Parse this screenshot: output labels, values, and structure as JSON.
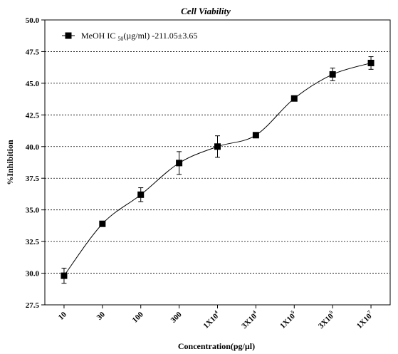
{
  "chart_data": {
    "type": "line",
    "title": "Cell Viability",
    "xlabel": "Concentration(pg/µl)",
    "ylabel": "%Inhibition",
    "ylim": [
      27.5,
      50.0
    ],
    "yticks": [
      "27.5",
      "30.0",
      "32.5",
      "35.0",
      "37.5",
      "40.0",
      "42.5",
      "45.0",
      "47.5",
      "50.0"
    ],
    "grid": true,
    "legend_position": "top-left",
    "categories": [
      {
        "base": "10",
        "sup": ""
      },
      {
        "base": "30",
        "sup": ""
      },
      {
        "base": "100",
        "sup": ""
      },
      {
        "base": "300",
        "sup": ""
      },
      {
        "base": "1X10",
        "sup": "4"
      },
      {
        "base": "3X10",
        "sup": "4"
      },
      {
        "base": "1X10",
        "sup": "5"
      },
      {
        "base": "3X10",
        "sup": "5"
      },
      {
        "base": "1X10",
        "sup": "7"
      }
    ],
    "series": [
      {
        "legend_label": {
          "pre": "MeOH IC ",
          "sub": "50",
          "post": "(µg/ml) -211.05±3.65"
        },
        "color": "#000000",
        "marker": "square",
        "values": [
          29.8,
          33.9,
          36.2,
          38.7,
          40.0,
          40.9,
          43.8,
          45.7,
          46.6
        ],
        "errors": [
          0.6,
          0.1,
          0.55,
          0.9,
          0.85,
          0.1,
          0.1,
          0.5,
          0.5
        ]
      }
    ]
  }
}
